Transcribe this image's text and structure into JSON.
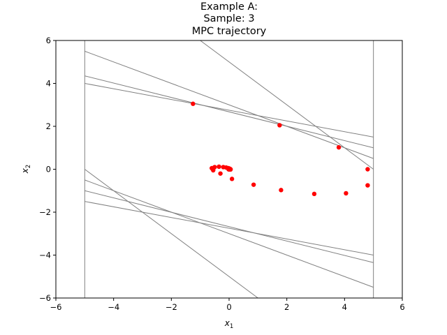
{
  "chart_data": {
    "type": "scatter",
    "title_lines": [
      "Example A:",
      "Sample: 3",
      "MPC trajectory"
    ],
    "xlabel": {
      "base": "x",
      "sub": "1"
    },
    "ylabel": {
      "base": "x",
      "sub": "2"
    },
    "xlim": [
      -6,
      6
    ],
    "ylim": [
      -6,
      6
    ],
    "xticks": [
      -6,
      -4,
      -2,
      0,
      2,
      4,
      6
    ],
    "yticks": [
      -6,
      -4,
      -2,
      0,
      2,
      4,
      6
    ],
    "xtick_labels": [
      "−6",
      "−4",
      "−2",
      "0",
      "2",
      "4",
      "6"
    ],
    "ytick_labels": [
      "−6",
      "−4",
      "−2",
      "0",
      "2",
      "4",
      "6"
    ],
    "grid": false,
    "line_color": "#808080",
    "point_color": "#ff0000",
    "constraint_lines": [
      {
        "x1": -5,
        "y1": -6,
        "x2": -5,
        "y2": 6
      },
      {
        "x1": 5,
        "y1": -6,
        "x2": 5,
        "y2": 6
      },
      {
        "x1": -5,
        "y1": 5.5,
        "x2": 5,
        "y2": 0.5
      },
      {
        "x1": -5,
        "y1": 4.35,
        "x2": 5,
        "y2": 1.0
      },
      {
        "x1": -5,
        "y1": 4.0,
        "x2": 5,
        "y2": 1.5
      },
      {
        "x1": -1.0,
        "y1": 6.0,
        "x2": 5,
        "y2": 0.0
      },
      {
        "x1": -5,
        "y1": 0.0,
        "x2": 1.0,
        "y2": -6.0
      },
      {
        "x1": -5,
        "y1": -0.5,
        "x2": 5,
        "y2": -5.5
      },
      {
        "x1": -5,
        "y1": -1.0,
        "x2": 5,
        "y2": -4.35
      },
      {
        "x1": -5,
        "y1": -1.5,
        "x2": 5,
        "y2": -4.0
      }
    ],
    "points": [
      {
        "x": -1.25,
        "y": 3.05
      },
      {
        "x": 1.75,
        "y": 2.05
      },
      {
        "x": 3.8,
        "y": 1.02
      },
      {
        "x": 4.8,
        "y": 0.0
      },
      {
        "x": 4.8,
        "y": -0.75
      },
      {
        "x": 4.05,
        "y": -1.12
      },
      {
        "x": 2.95,
        "y": -1.15
      },
      {
        "x": 1.8,
        "y": -0.97
      },
      {
        "x": 0.85,
        "y": -0.72
      },
      {
        "x": 0.1,
        "y": -0.45
      },
      {
        "x": -0.3,
        "y": -0.2
      },
      {
        "x": -0.55,
        "y": -0.05
      },
      {
        "x": -0.6,
        "y": 0.05
      },
      {
        "x": -0.5,
        "y": 0.1
      },
      {
        "x": -0.35,
        "y": 0.12
      },
      {
        "x": -0.2,
        "y": 0.1
      },
      {
        "x": -0.1,
        "y": 0.08
      },
      {
        "x": -0.02,
        "y": 0.05
      },
      {
        "x": 0.03,
        "y": 0.02
      },
      {
        "x": 0.05,
        "y": 0.0
      },
      {
        "x": 0.05,
        "y": -0.01
      },
      {
        "x": 0.0,
        "y": -0.01
      },
      {
        "x": -0.02,
        "y": 0.0
      }
    ]
  }
}
